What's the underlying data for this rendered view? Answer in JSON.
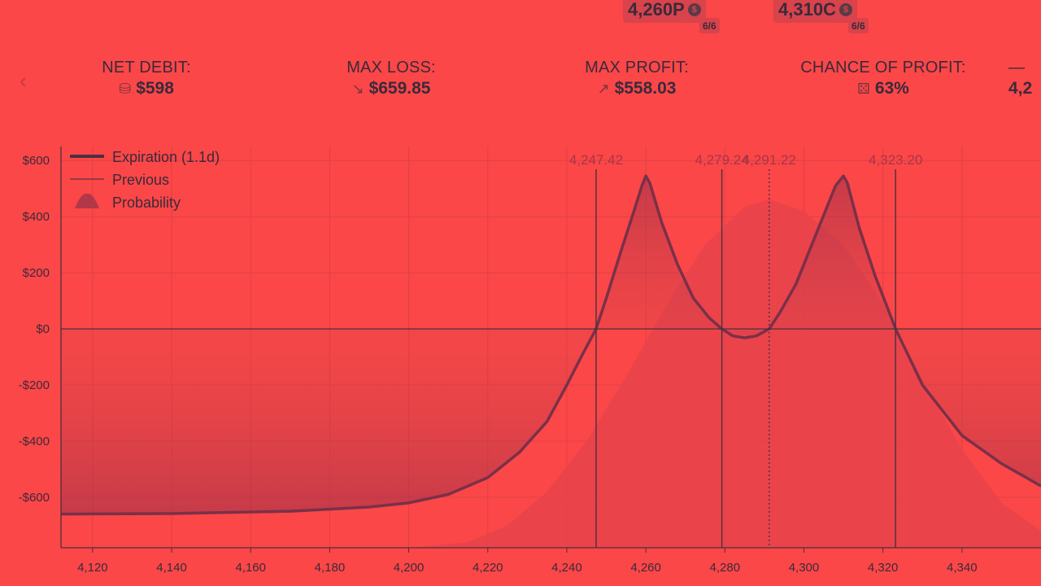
{
  "header": {
    "legs": [
      {
        "label": "4,260P",
        "badge": "6/6",
        "icon": "dollar-coin-icon"
      },
      {
        "label": "4,310C",
        "badge": "6/6",
        "icon": "dollar-coin-icon"
      }
    ]
  },
  "stats": {
    "net_debit": {
      "label": "NET DEBIT:",
      "value": "$598",
      "icon": "coins-icon"
    },
    "max_loss": {
      "label": "MAX LOSS:",
      "value": "$659.85",
      "icon": "arrow-down-right-icon"
    },
    "max_profit": {
      "label": "MAX PROFIT:",
      "value": "$558.03",
      "icon": "arrow-up-right-icon"
    },
    "chance_of_profit": {
      "label": "CHANCE OF PROFIT:",
      "value": "63%",
      "icon": "dice-icon"
    },
    "next_partial": {
      "label": "—",
      "value": "4,2"
    }
  },
  "colors": {
    "background": "#fb4747",
    "line": "#7a3048",
    "fill": "#c8424c",
    "probability": "#e8434b",
    "axis": "#4a3040"
  },
  "chart_data": {
    "type": "line",
    "title": "",
    "xlabel": "",
    "ylabel": "",
    "xlim": [
      4112,
      4360
    ],
    "ylim": [
      -780,
      650
    ],
    "xticks": [
      4120,
      4140,
      4160,
      4180,
      4200,
      4220,
      4240,
      4260,
      4280,
      4300,
      4320,
      4340
    ],
    "xtick_labels": [
      "4,120",
      "4,140",
      "4,160",
      "4,180",
      "4,200",
      "4,220",
      "4,240",
      "4,260",
      "4,280",
      "4,300",
      "4,320",
      "4,340"
    ],
    "yticks": [
      600,
      400,
      200,
      0,
      -200,
      -400,
      -600
    ],
    "ytick_labels": [
      "$600",
      "$400",
      "$200",
      "$0",
      "-$200",
      "-$400",
      "-$600"
    ],
    "legend": {
      "placement": "top-left",
      "entries": [
        "Expiration (1.1d)",
        "Previous",
        "Probability"
      ]
    },
    "vlines": [
      {
        "x": 4247.42,
        "label": "4,247.42",
        "style": "solid"
      },
      {
        "x": 4279.24,
        "label": "4,279.24",
        "style": "solid"
      },
      {
        "x": 4291.22,
        "label": "4,291.22",
        "style": "dotted"
      },
      {
        "x": 4323.2,
        "label": "4,323.20",
        "style": "solid"
      }
    ],
    "series": [
      {
        "name": "Expiration (1.1d)",
        "x": [
          4112,
          4140,
          4170,
          4190,
          4200,
          4210,
          4220,
          4228,
          4235,
          4240,
          4244,
          4247.42,
          4250,
          4254,
          4257,
          4259,
          4260,
          4261,
          4264,
          4268,
          4272,
          4276,
          4279.24,
          4282,
          4285,
          4288,
          4291.22,
          4294,
          4298,
          4302,
          4306,
          4308,
          4310,
          4311,
          4314,
          4318,
          4323.2,
          4330,
          4340,
          4350,
          4360
        ],
        "y": [
          -660,
          -658,
          -650,
          -635,
          -620,
          -590,
          -530,
          -440,
          -330,
          -200,
          -90,
          0,
          110,
          290,
          420,
          510,
          545,
          520,
          380,
          230,
          110,
          40,
          0,
          -25,
          -32,
          -25,
          0,
          60,
          160,
          300,
          440,
          510,
          545,
          520,
          360,
          190,
          0,
          -200,
          -380,
          -480,
          -560
        ]
      },
      {
        "name": "Probability",
        "x": [
          4200,
          4215,
          4225,
          4235,
          4245,
          4255,
          4265,
          4275,
          4285,
          4291.22,
          4300,
          4310,
          4320,
          4330,
          4340,
          4350,
          4360
        ],
        "y": [
          -780,
          -760,
          -700,
          -580,
          -400,
          -170,
          80,
          300,
          435,
          462,
          420,
          300,
          90,
          -180,
          -430,
          -620,
          -720
        ]
      }
    ]
  }
}
